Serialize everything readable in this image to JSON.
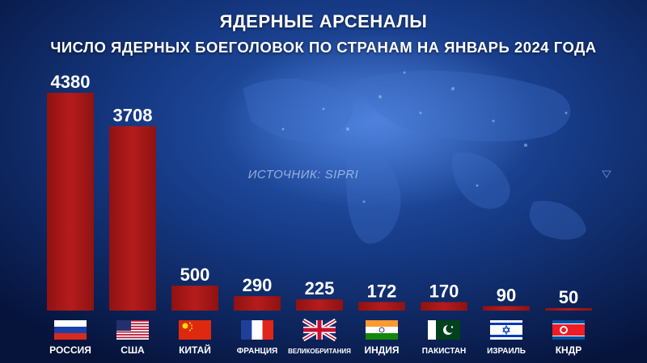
{
  "title": "ЯДЕРНЫЕ АРСЕНАЛЫ",
  "subtitle": "ЧИСЛО ЯДЕРНЫХ БОЕГОЛОВОК ПО СТРАНАМ НА ЯНВАРЬ 2024 ГОДА",
  "source": "ИСТОЧНИК: SIPRI",
  "colors": {
    "bar": "#8f1212",
    "bar_highlight": "#b51c1c",
    "background": "#0b1e52"
  },
  "chart_data": {
    "type": "bar",
    "title": "ЯДЕРНЫЕ АРСЕНАЛЫ",
    "subtitle": "ЧИСЛО ЯДЕРНЫХ БОЕГОЛОВОК ПО СТРАНАМ НА ЯНВАРЬ 2024 ГОДА",
    "categories": [
      "РОССИЯ",
      "США",
      "КИТАЙ",
      "ФРАНЦИЯ",
      "ВЕЛИКОБРИТАНИЯ",
      "ИНДИЯ",
      "ПАКИСТАН",
      "ИЗРАИЛЬ",
      "КНДР"
    ],
    "values": [
      4380,
      3708,
      500,
      290,
      225,
      172,
      170,
      90,
      50
    ],
    "flags": [
      "russia-flag",
      "usa-flag",
      "china-flag",
      "france-flag",
      "uk-flag",
      "india-flag",
      "pakistan-flag",
      "israel-flag",
      "north-korea-flag"
    ],
    "xlabel": "",
    "ylabel": "",
    "grid": false,
    "legend": "none"
  }
}
